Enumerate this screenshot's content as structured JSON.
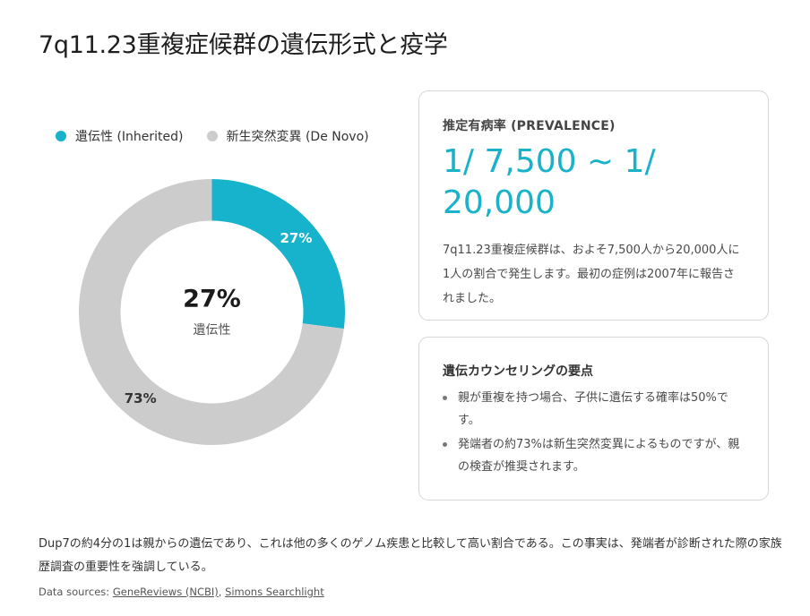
{
  "header": {
    "title": "7q11.23重複症候群の遺伝形式と疫学"
  },
  "legend": {
    "items": [
      {
        "label": "遺伝性 (Inherited)",
        "color": "#17b3cc"
      },
      {
        "label": "新生突然変異 (De Novo)",
        "color": "#cccccc"
      }
    ]
  },
  "donut": {
    "center_value": "27%",
    "center_label": "遺伝性",
    "segments": [
      {
        "name": "遺伝性 (Inherited)",
        "value": 27,
        "label": "27%",
        "color": "#17b3cc",
        "label_color": "#ffffff"
      },
      {
        "name": "新生突然変異 (De Novo)",
        "value": 73,
        "label": "73%",
        "color": "#cccccc",
        "label_color": "#333333"
      }
    ]
  },
  "chart_data": {
    "type": "pie",
    "subtype": "donut",
    "title": "7q11.23重複症候群の遺伝形式と疫学",
    "categories": [
      "遺伝性 (Inherited)",
      "新生突然変異 (De Novo)"
    ],
    "values": [
      27,
      73
    ],
    "unit": "%",
    "colors": [
      "#17b3cc",
      "#cccccc"
    ],
    "data_labels": [
      "27%",
      "73%"
    ],
    "center_annotation": {
      "value": "27%",
      "label": "遺伝性"
    },
    "legend_position": "top"
  },
  "prevalence_card": {
    "label": "推定有病率 (PREVALENCE)",
    "value": "1/ 7,500 ~ 1/ 20,000",
    "description": "7q11.23重複症候群は、およそ7,500人から20,000人に1人の割合で発生します。最初の症例は2007年に報告されました。"
  },
  "counseling_card": {
    "title": "遺伝カウンセリングの要点",
    "bullets": [
      "親が重複を持つ場合、子供に遺伝する確率は50%です。",
      "発端者の約73%は新生突然変異によるものですが、親の検査が推奨されます。"
    ]
  },
  "footer": {
    "summary": "Dup7の約4分の1は親からの遺伝であり、これは他の多くのゲノム疾患と比較して高い割合である。この事実は、発端者が診断された際の家族歴調査の重要性を強調している。",
    "sources_prefix": "Data sources: ",
    "sources": [
      {
        "label": "GeneReviews (NCBI)"
      },
      {
        "label": "Simons Searchlight"
      }
    ],
    "separator": ", "
  }
}
